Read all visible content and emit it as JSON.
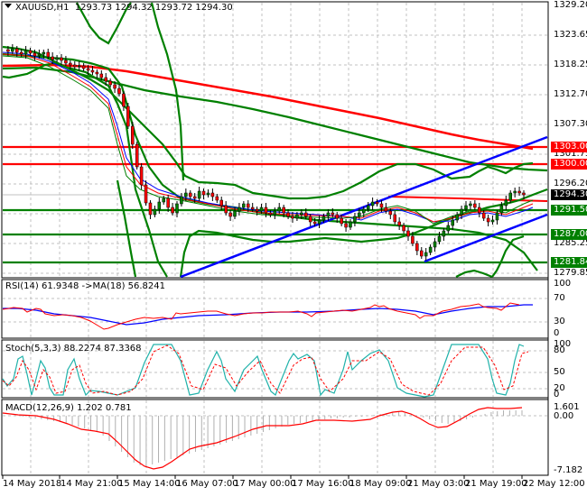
{
  "header": {
    "symbol": "XAUUSD,H1",
    "ohlc": "1293.73 1294.32 1293.72 1294.30"
  },
  "colors": {
    "background": "#ffffff",
    "grid": "#c0c0c0",
    "bull_candle": "#008000",
    "bear_candle": "#ff0000",
    "resistance": "#ff0000",
    "support": "#008000",
    "trendline": "#0000ff",
    "bollinger": "#008000",
    "ma_long": "#ff0000",
    "current_price_tag": "#000000",
    "rsi": "#ff0000",
    "rsi_ma": "#0000ff",
    "stoch_main": "#20b2aa",
    "stoch_signal": "#ff0000",
    "macd_hist": "#c0c0c0",
    "macd_signal": "#ff0000"
  },
  "price_axis": {
    "ticks": [
      "1329.20",
      "1323.65",
      "1318.25",
      "1312.70",
      "1307.30",
      "1301.75",
      "1296.20",
      "1290.80",
      "1285.25",
      "1279.85"
    ],
    "tags": [
      {
        "label": "1303.00",
        "kind": "resistance"
      },
      {
        "label": "1300.00",
        "kind": "resistance"
      },
      {
        "label": "1294.30",
        "kind": "current"
      },
      {
        "label": "1291.50",
        "kind": "support"
      },
      {
        "label": "1287.00",
        "kind": "support"
      },
      {
        "label": "1281.84",
        "kind": "support"
      }
    ]
  },
  "rsi": {
    "title": "RSI(14) 61.9348  ->MA(18) 56.8241",
    "axis": [
      "100",
      "70",
      "30",
      "0"
    ]
  },
  "stoch": {
    "title": "Stoch(5,3,3) 88.2274 87.3368",
    "axis": [
      "100",
      "80",
      "50",
      "20",
      "0"
    ]
  },
  "macd": {
    "title": "MACD(12,26,9) 1.202 0.781",
    "axis": [
      "1.601",
      "0.00",
      "-7.182"
    ]
  },
  "time_axis": {
    "labels": [
      "14 May 2018",
      "14 May 21:00",
      "15 May 14:00",
      "16 May 07:00",
      "17 May 00:00",
      "17 May 16:00",
      "18 May 09:00",
      "21 May 03:00",
      "21 May 19:00",
      "22 May 12:00"
    ]
  },
  "chart_data": [
    {
      "type": "line",
      "title": "XAUUSD,H1",
      "subtitle": "O 1293.73 H 1294.32 L 1293.72 C 1294.30",
      "xlabel": "",
      "ylabel": "Price",
      "ylim": [
        1279.85,
        1329.2
      ],
      "grid": true,
      "categories": [
        "14 May 2018",
        "14 May 21:00",
        "15 May 14:00",
        "16 May 07:00",
        "17 May 00:00",
        "17 May 16:00",
        "18 May 09:00",
        "21 May 03:00",
        "21 May 19:00",
        "22 May 12:00"
      ],
      "series": [
        {
          "name": "Close (approx.)",
          "values": [
            1320.5,
            1316.5,
            1291.0,
            1292.0,
            1291.5,
            1290.0,
            1292.5,
            1283.0,
            1291.0,
            1294.3
          ]
        },
        {
          "name": "MA long (red)",
          "values": [
            1318.5,
            1317.0,
            1314.0,
            1311.5,
            1309.0,
            1306.5,
            1304.5,
            1303.0,
            1302.0,
            1301.7
          ]
        },
        {
          "name": "Resistance 1303.00",
          "values": [
            1303.0,
            1303.0,
            1303.0,
            1303.0,
            1303.0,
            1303.0,
            1303.0,
            1303.0,
            1303.0,
            1303.0
          ]
        },
        {
          "name": "Resistance 1300.00",
          "values": [
            1300.0,
            1300.0,
            1300.0,
            1300.0,
            1300.0,
            1300.0,
            1300.0,
            1300.0,
            1300.0,
            1300.0
          ]
        },
        {
          "name": "Support 1291.50",
          "values": [
            1291.5,
            1291.5,
            1291.5,
            1291.5,
            1291.5,
            1291.5,
            1291.5,
            1291.5,
            1291.5,
            1291.5
          ]
        },
        {
          "name": "Support 1287.00",
          "values": [
            1287.0,
            1287.0,
            1287.0,
            1287.0,
            1287.0,
            1287.0,
            1287.0,
            1287.0,
            1287.0,
            1287.0
          ]
        },
        {
          "name": "Support 1281.84",
          "values": [
            1281.84,
            1281.84,
            1281.84,
            1281.84,
            1281.84,
            1281.84,
            1281.84,
            1281.84,
            1281.84,
            1281.84
          ]
        }
      ],
      "annotations": [
        "Current price 1294.30",
        "Ascending blue trend channel"
      ]
    },
    {
      "type": "line",
      "title": "RSI(14) 61.9348 ->MA(18) 56.8241",
      "ylim": [
        0,
        100
      ],
      "grid": true,
      "categories": [
        "14 May 2018",
        "14 May 21:00",
        "15 May 14:00",
        "16 May 07:00",
        "17 May 00:00",
        "17 May 16:00",
        "18 May 09:00",
        "21 May 03:00",
        "21 May 19:00",
        "22 May 12:00"
      ],
      "series": [
        {
          "name": "RSI(14)",
          "values": [
            58,
            42,
            28,
            45,
            52,
            55,
            52,
            40,
            62,
            61.93
          ]
        },
        {
          "name": "MA(18)",
          "values": [
            58,
            52,
            35,
            44,
            48,
            50,
            52,
            46,
            58,
            56.82
          ]
        }
      ]
    },
    {
      "type": "line",
      "title": "Stoch(5,3,3) 88.2274 87.3368",
      "ylim": [
        0,
        100
      ],
      "grid": true,
      "categories": [
        "14 May 2018",
        "14 May 21:00",
        "15 May 14:00",
        "16 May 07:00",
        "17 May 00:00",
        "17 May 16:00",
        "18 May 09:00",
        "21 May 03:00",
        "21 May 19:00",
        "22 May 12:00"
      ],
      "series": [
        {
          "name": "%K",
          "values": [
            40,
            70,
            5,
            100,
            30,
            80,
            70,
            10,
            100,
            88.23
          ]
        },
        {
          "name": "%D",
          "values": [
            35,
            60,
            10,
            95,
            35,
            75,
            65,
            15,
            95,
            87.34
          ]
        }
      ]
    },
    {
      "type": "bar",
      "title": "MACD(12,26,9) 1.202 0.781",
      "ylim": [
        -7.182,
        1.601
      ],
      "grid": true,
      "categories": [
        "14 May 2018",
        "14 May 21:00",
        "15 May 14:00",
        "16 May 07:00",
        "17 May 00:00",
        "17 May 16:00",
        "18 May 09:00",
        "21 May 03:00",
        "21 May 19:00",
        "22 May 12:00"
      ],
      "series": [
        {
          "name": "MACD histogram",
          "values": [
            0.0,
            -1.5,
            -6.5,
            -4.0,
            -2.5,
            -1.0,
            0.3,
            0.8,
            -0.5,
            1.202
          ]
        },
        {
          "name": "Signal",
          "values": [
            0.0,
            -0.8,
            -6.8,
            -4.5,
            -2.8,
            -1.4,
            -0.6,
            0.6,
            -1.5,
            0.781
          ]
        }
      ]
    }
  ]
}
